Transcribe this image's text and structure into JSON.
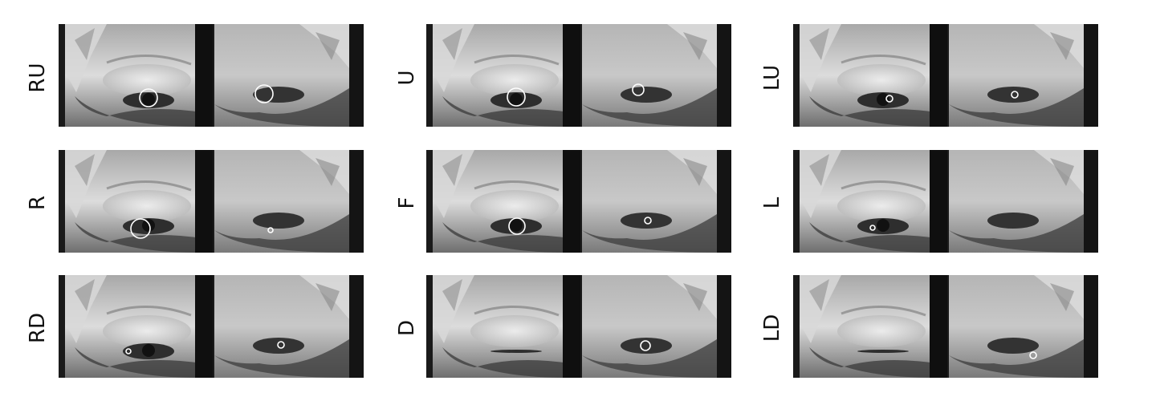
{
  "panels": [
    {
      "label": "RU"
    },
    {
      "label": "U"
    },
    {
      "label": "LU"
    },
    {
      "label": "R"
    },
    {
      "label": "F"
    },
    {
      "label": "L"
    },
    {
      "label": "RD"
    },
    {
      "label": "D"
    },
    {
      "label": "LD"
    }
  ]
}
